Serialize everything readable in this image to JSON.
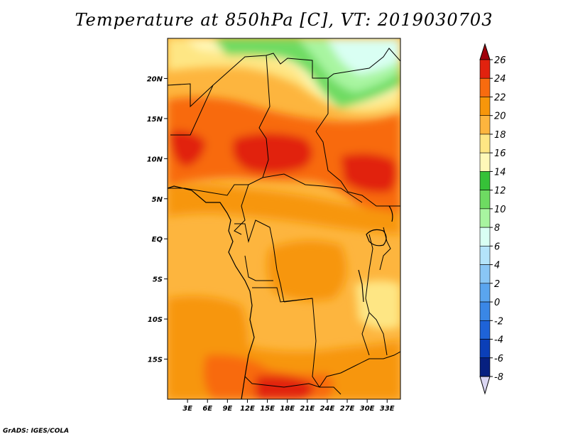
{
  "title": "Temperature at 850hPa [C], VT: 2019030703",
  "credit": "GrADS: IGES/COLA",
  "map": {
    "lat_labels": [
      "20N",
      "15N",
      "10N",
      "5N",
      "EQ",
      "5S",
      "10S",
      "15S"
    ],
    "lon_labels": [
      "3E",
      "6E",
      "9E",
      "12E",
      "15E",
      "18E",
      "21E",
      "24E",
      "27E",
      "30E",
      "33E"
    ],
    "lat_values": [
      20,
      15,
      10,
      5,
      0,
      -5,
      -10,
      -15
    ],
    "lon_values": [
      3,
      6,
      9,
      12,
      15,
      18,
      21,
      24,
      27,
      30,
      33
    ],
    "lat_range": [
      -20,
      25
    ],
    "lon_range": [
      0,
      35
    ]
  },
  "colorbar": {
    "labels": [
      "26",
      "24",
      "22",
      "20",
      "18",
      "16",
      "14",
      "12",
      "10",
      "8",
      "6",
      "4",
      "2",
      "0",
      "-2",
      "-4",
      "-6",
      "-8"
    ],
    "colors": [
      "#a0000b",
      "#e1220e",
      "#f86b0f",
      "#f7960a",
      "#fdb53e",
      "#fee684",
      "#fff8b8",
      "#36c238",
      "#6edb62",
      "#a8f5a0",
      "#d9fff3",
      "#b4e4fa",
      "#89c6f5",
      "#5aa5ef",
      "#3a87e6",
      "#1e63d8",
      "#0b3fb8",
      "#072080",
      "#dbd7f3"
    ]
  },
  "chart_data": {
    "type": "heatmap",
    "title": "Temperature at 850hPa [C], VT: 2019030703",
    "variable": "temperature at 850hPa",
    "units": "C",
    "valid_time": "2019030703",
    "lat_ticks": [
      "20N",
      "15N",
      "10N",
      "5N",
      "EQ",
      "5S",
      "10S",
      "15S"
    ],
    "lon_ticks": [
      "3E",
      "6E",
      "9E",
      "12E",
      "15E",
      "18E",
      "21E",
      "24E",
      "27E",
      "30E",
      "33E"
    ],
    "colorbar_levels": [
      26,
      24,
      22,
      20,
      18,
      16,
      14,
      12,
      10,
      8,
      6,
      4,
      2,
      0,
      -2,
      -4,
      -6,
      -8
    ],
    "regions": [
      {
        "area": "northern Sahara/Libya-Egypt",
        "range_c": [
          8,
          14
        ]
      },
      {
        "area": "Sahel band ~8N-15N",
        "range_c": [
          22,
          26
        ]
      },
      {
        "area": "Congo Basin / equator",
        "range_c": [
          18,
          22
        ]
      },
      {
        "area": "southern Angola/Zambia ~15S-20S",
        "range_c": [
          20,
          24
        ]
      }
    ]
  }
}
